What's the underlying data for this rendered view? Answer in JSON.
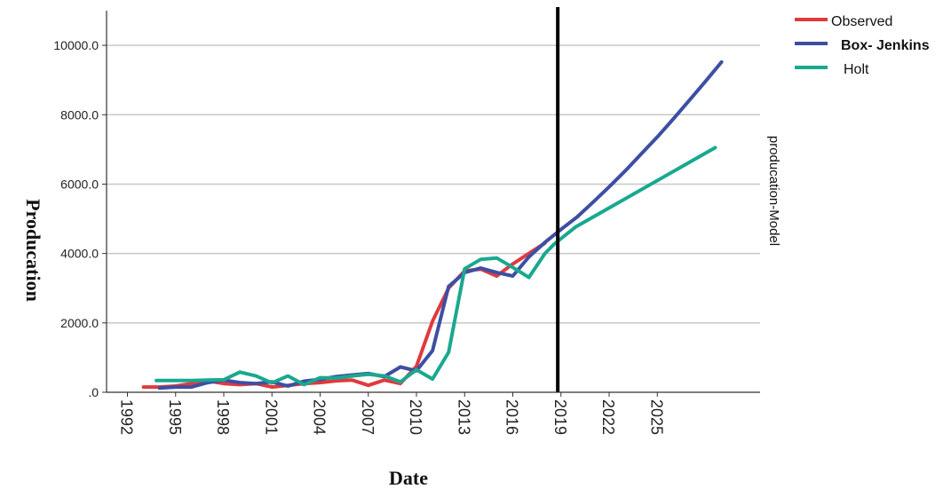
{
  "chart_data": {
    "type": "line",
    "xlabel": "Date",
    "ylabel": "Producation",
    "right_label": "producation-Model",
    "xlim": [
      1990.7,
      2031.4
    ],
    "ylim": [
      0,
      11000
    ],
    "x_ticks": [
      1992,
      1995,
      1998,
      2001,
      2004,
      2007,
      2010,
      2013,
      2016,
      2019,
      2022,
      2025
    ],
    "x_tick_labels": [
      "1992",
      "1995",
      "1998",
      "2001",
      "2004",
      "2007",
      "2010",
      "2013",
      "2016",
      "2019",
      "2022",
      "2025"
    ],
    "y_ticks": [
      0,
      2000,
      4000,
      6000,
      8000,
      10000
    ],
    "y_tick_labels": [
      ".0",
      "2000.0",
      "4000.0",
      "6000.0",
      "8000.0",
      "10000.0"
    ],
    "grid": "horizontal",
    "forecast_divider_x": 2018.8,
    "legend_position": "top-right",
    "series": [
      {
        "name": "Observed",
        "color": "#e03a3e",
        "points": [
          [
            1993,
            150
          ],
          [
            1994,
            150
          ],
          [
            1995,
            180
          ],
          [
            1996,
            250
          ],
          [
            1997,
            330
          ],
          [
            1998,
            250
          ],
          [
            1999,
            220
          ],
          [
            2000,
            250
          ],
          [
            2001,
            150
          ],
          [
            2002,
            200
          ],
          [
            2003,
            250
          ],
          [
            2004,
            280
          ],
          [
            2005,
            330
          ],
          [
            2006,
            350
          ],
          [
            2007,
            200
          ],
          [
            2008,
            350
          ],
          [
            2009,
            250
          ],
          [
            2010,
            750
          ],
          [
            2011,
            2050
          ],
          [
            2012,
            3000
          ],
          [
            2013,
            3500
          ],
          [
            2014,
            3550
          ],
          [
            2015,
            3350
          ],
          [
            2016,
            3700
          ],
          [
            2017,
            4000
          ],
          [
            2018,
            4300
          ]
        ]
      },
      {
        "name": "Box- Jenkins",
        "color": "#3d4fa3",
        "points": [
          [
            1994,
            120
          ],
          [
            1995,
            150
          ],
          [
            1996,
            150
          ],
          [
            1997,
            280
          ],
          [
            1998,
            350
          ],
          [
            1999,
            280
          ],
          [
            2000,
            250
          ],
          [
            2001,
            300
          ],
          [
            2002,
            180
          ],
          [
            2003,
            320
          ],
          [
            2004,
            370
          ],
          [
            2005,
            450
          ],
          [
            2006,
            500
          ],
          [
            2007,
            540
          ],
          [
            2008,
            450
          ],
          [
            2009,
            730
          ],
          [
            2010,
            620
          ],
          [
            2011,
            1200
          ],
          [
            2012,
            3050
          ],
          [
            2013,
            3450
          ],
          [
            2014,
            3580
          ],
          [
            2015,
            3450
          ],
          [
            2016,
            3350
          ],
          [
            2017,
            3900
          ],
          [
            2018,
            4320
          ],
          [
            2019.1,
            4730
          ],
          [
            2020,
            5050
          ],
          [
            2021,
            5480
          ],
          [
            2022,
            5920
          ],
          [
            2023,
            6380
          ],
          [
            2024,
            6870
          ],
          [
            2025,
            7360
          ],
          [
            2026,
            7880
          ],
          [
            2027,
            8420
          ],
          [
            2028,
            8960
          ],
          [
            2029,
            9520
          ]
        ]
      },
      {
        "name": "Holt",
        "color": "#1aa88f",
        "points": [
          [
            1993.8,
            340
          ],
          [
            1995,
            340
          ],
          [
            1996,
            340
          ],
          [
            1997,
            350
          ],
          [
            1998,
            360
          ],
          [
            1999,
            580
          ],
          [
            2000,
            470
          ],
          [
            2001,
            270
          ],
          [
            2002,
            470
          ],
          [
            2003,
            220
          ],
          [
            2004,
            420
          ],
          [
            2005,
            410
          ],
          [
            2006,
            470
          ],
          [
            2007,
            520
          ],
          [
            2008,
            470
          ],
          [
            2009,
            300
          ],
          [
            2010,
            650
          ],
          [
            2011,
            380
          ],
          [
            2012,
            1150
          ],
          [
            2013,
            3560
          ],
          [
            2014,
            3830
          ],
          [
            2015,
            3870
          ],
          [
            2016,
            3600
          ],
          [
            2017,
            3310
          ],
          [
            2018,
            4000
          ],
          [
            2018.6,
            4280
          ],
          [
            2019.9,
            4760
          ],
          [
            2028.6,
            7050
          ]
        ]
      }
    ]
  }
}
